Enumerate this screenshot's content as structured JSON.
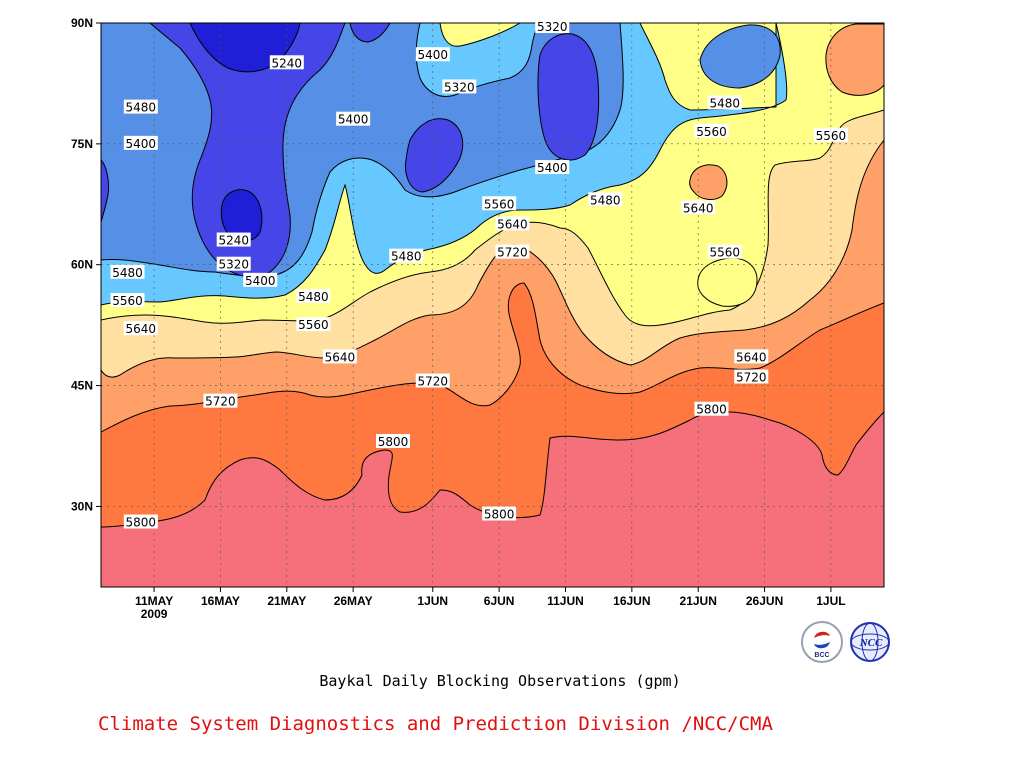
{
  "chart_data": {
    "type": "heatmap",
    "subtype": "filled-contour",
    "title": "Baykal Daily Blocking Observations (gpm)",
    "credit": "Climate System Diagnostics and Prediction Division /NCC/CMA",
    "x_ticks": [
      {
        "label": "11MAY",
        "sublabel": "2009",
        "date": "2009-05-11"
      },
      {
        "label": "16MAY",
        "date": "2009-05-16"
      },
      {
        "label": "21MAY",
        "date": "2009-05-21"
      },
      {
        "label": "26MAY",
        "date": "2009-05-26"
      },
      {
        "label": "1JUN",
        "date": "2009-06-01"
      },
      {
        "label": "6JUN",
        "date": "2009-06-06"
      },
      {
        "label": "11JUN",
        "date": "2009-06-11"
      },
      {
        "label": "16JUN",
        "date": "2009-06-16"
      },
      {
        "label": "21JUN",
        "date": "2009-06-21"
      },
      {
        "label": "26JUN",
        "date": "2009-06-26"
      },
      {
        "label": "1JUL",
        "date": "2009-07-01"
      }
    ],
    "xlim": [
      "2009-05-07",
      "2009-07-05"
    ],
    "y_ticks": [
      {
        "label": "30N",
        "value": 30
      },
      {
        "label": "45N",
        "value": 45
      },
      {
        "label": "60N",
        "value": 60
      },
      {
        "label": "75N",
        "value": 75
      },
      {
        "label": "90N",
        "value": 90
      }
    ],
    "ylim": [
      20,
      90
    ],
    "grid": true,
    "levels": [
      5240,
      5320,
      5400,
      5480,
      5560,
      5640,
      5720,
      5800
    ],
    "colors": {
      "below_5240": "#1f1fd8",
      "5240_5320": "#4646e8",
      "5320_5400": "#5590e6",
      "5400_5480": "#66c8ff",
      "5480_5560": "#ffff88",
      "5560_5640": "#ffe0a0",
      "5640_5720": "#ffa068",
      "5720_5800": "#ff7840",
      "above_5800": "#f5707a"
    },
    "contour_labels": [
      {
        "text": "5800",
        "date": "2009-05-10",
        "lat": 28
      },
      {
        "text": "5720",
        "date": "2009-05-16",
        "lat": 43
      },
      {
        "text": "5640",
        "date": "2009-05-10",
        "lat": 52
      },
      {
        "text": "5560",
        "date": "2009-05-09",
        "lat": 55.5
      },
      {
        "text": "5480",
        "date": "2009-05-09",
        "lat": 59
      },
      {
        "text": "5480",
        "date": "2009-05-10",
        "lat": 79.5
      },
      {
        "text": "5400",
        "date": "2009-05-10",
        "lat": 75
      },
      {
        "text": "5240",
        "date": "2009-05-21",
        "lat": 85
      },
      {
        "text": "5240",
        "date": "2009-05-17",
        "lat": 63
      },
      {
        "text": "5320",
        "date": "2009-05-17",
        "lat": 60
      },
      {
        "text": "5400",
        "date": "2009-05-19",
        "lat": 58
      },
      {
        "text": "5480",
        "date": "2009-05-23",
        "lat": 56
      },
      {
        "text": "5560",
        "date": "2009-05-23",
        "lat": 52.5
      },
      {
        "text": "5640",
        "date": "2009-05-25",
        "lat": 48.5
      },
      {
        "text": "5400",
        "date": "2009-05-26",
        "lat": 78
      },
      {
        "text": "5480",
        "date": "2009-05-30",
        "lat": 61
      },
      {
        "text": "5720",
        "date": "2009-06-01",
        "lat": 45.5
      },
      {
        "text": "5800",
        "date": "2009-05-29",
        "lat": 38
      },
      {
        "text": "5400",
        "date": "2009-06-01",
        "lat": 86
      },
      {
        "text": "5320",
        "date": "2009-06-03",
        "lat": 82
      },
      {
        "text": "5560",
        "date": "2009-06-06",
        "lat": 67.5
      },
      {
        "text": "5640",
        "date": "2009-06-07",
        "lat": 65
      },
      {
        "text": "5720",
        "date": "2009-06-07",
        "lat": 61.5
      },
      {
        "text": "5800",
        "date": "2009-06-06",
        "lat": 29
      },
      {
        "text": "5320",
        "date": "2009-06-10",
        "lat": 89.5
      },
      {
        "text": "5400",
        "date": "2009-06-10",
        "lat": 72
      },
      {
        "text": "5480",
        "date": "2009-06-14",
        "lat": 68
      },
      {
        "text": "5480",
        "date": "2009-06-23",
        "lat": 80
      },
      {
        "text": "5560",
        "date": "2009-06-22",
        "lat": 76.5
      },
      {
        "text": "5560",
        "date": "2009-07-01",
        "lat": 76
      },
      {
        "text": "5640",
        "date": "2009-06-21",
        "lat": 67
      },
      {
        "text": "5560",
        "date": "2009-06-23",
        "lat": 61.5
      },
      {
        "text": "5640",
        "date": "2009-06-25",
        "lat": 48.5
      },
      {
        "text": "5720",
        "date": "2009-06-25",
        "lat": 46
      },
      {
        "text": "5800",
        "date": "2009-06-22",
        "lat": 42
      }
    ],
    "logos": [
      "bcc-logo-icon",
      "ncc-logo-icon"
    ]
  }
}
